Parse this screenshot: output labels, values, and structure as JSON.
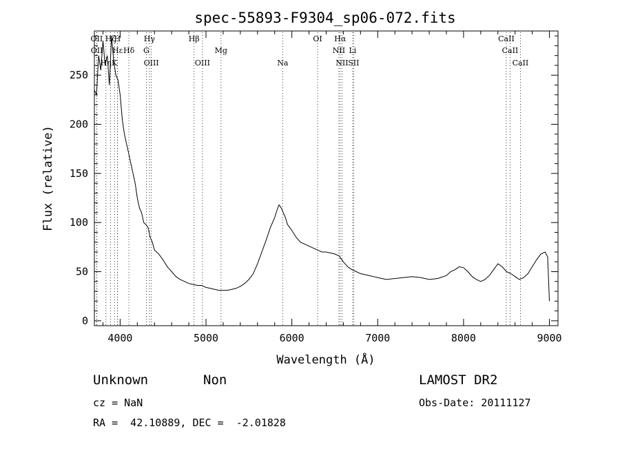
{
  "chart_data": {
    "type": "line",
    "title": "spec-55893-F9304_sp06-072.fits",
    "xlabel": "Wavelength (Å)",
    "ylabel": "Flux (relative)",
    "xlim": [
      3700,
      9100
    ],
    "ylim": [
      -5,
      295
    ],
    "xticks": [
      4000,
      5000,
      6000,
      7000,
      8000,
      9000
    ],
    "yticks": [
      0,
      50,
      100,
      150,
      200,
      250
    ],
    "grid": false,
    "series": [
      {
        "x": [
          3700,
          3725,
          3750,
          3775,
          3800,
          3825,
          3850,
          3875,
          3900,
          3925,
          3950,
          3975,
          4000,
          4025,
          4050,
          4075,
          4100,
          4125,
          4150,
          4175,
          4200,
          4225,
          4250,
          4275,
          4300,
          4325,
          4350,
          4375,
          4400,
          4450,
          4500,
          4550,
          4600,
          4650,
          4700,
          4750,
          4800,
          4850,
          4900,
          4950,
          5000,
          5050,
          5100,
          5150,
          5200,
          5250,
          5300,
          5350,
          5400,
          5450,
          5500,
          5550,
          5600,
          5650,
          5700,
          5750,
          5800,
          5825,
          5850,
          5875,
          5900,
          5925,
          5950,
          6000,
          6050,
          6100,
          6150,
          6200,
          6250,
          6300,
          6350,
          6400,
          6450,
          6500,
          6550,
          6600,
          6650,
          6700,
          6750,
          6800,
          6850,
          6900,
          6950,
          7000,
          7100,
          7200,
          7300,
          7400,
          7500,
          7600,
          7700,
          7800,
          7850,
          7900,
          7950,
          8000,
          8050,
          8100,
          8150,
          8200,
          8250,
          8300,
          8350,
          8400,
          8450,
          8500,
          8550,
          8600,
          8650,
          8700,
          8750,
          8800,
          8850,
          8900,
          8950,
          8980,
          9000
        ],
        "y": [
          235,
          230,
          270,
          255,
          285,
          260,
          270,
          240,
          290,
          265,
          250,
          245,
          230,
          205,
          190,
          180,
          170,
          160,
          150,
          140,
          125,
          115,
          110,
          100,
          98,
          95,
          85,
          80,
          72,
          68,
          62,
          55,
          50,
          45,
          42,
          40,
          38,
          37,
          36,
          36,
          34,
          33,
          32,
          31,
          31,
          31,
          32,
          33,
          35,
          38,
          42,
          48,
          58,
          70,
          82,
          95,
          105,
          112,
          118,
          115,
          110,
          105,
          98,
          92,
          85,
          80,
          78,
          76,
          74,
          72,
          70,
          70,
          69,
          68,
          66,
          60,
          55,
          52,
          50,
          48,
          47,
          46,
          45,
          44,
          42,
          43,
          44,
          45,
          44,
          42,
          43,
          46,
          50,
          52,
          55,
          54,
          50,
          45,
          42,
          40,
          42,
          46,
          52,
          58,
          55,
          50,
          48,
          45,
          42,
          44,
          48,
          55,
          62,
          68,
          70,
          65,
          20
        ]
      }
    ],
    "line_markers": [
      {
        "label": "OII",
        "x": 3727
      },
      {
        "label": "OII",
        "x": 3729
      },
      {
        "label": "Hη",
        "x": 3835
      },
      {
        "label": "Hζ",
        "x": 3889
      },
      {
        "label": "Hε",
        "x": 3970
      },
      {
        "label": "K",
        "x": 3934
      },
      {
        "label": "H",
        "x": 3968
      },
      {
        "label": "Hδ",
        "x": 4102
      },
      {
        "label": "OIII",
        "x": 4363
      },
      {
        "label": "Hγ",
        "x": 4341
      },
      {
        "label": "G",
        "x": 4305
      },
      {
        "label": "OIII",
        "x": 4959
      },
      {
        "label": "Hβ",
        "x": 4861
      },
      {
        "label": "Mg",
        "x": 5175
      },
      {
        "label": "Na",
        "x": 5893
      },
      {
        "label": "OI",
        "x": 6300
      },
      {
        "label": "NII",
        "x": 6548
      },
      {
        "label": "NII",
        "x": 6584
      },
      {
        "label": "Hα",
        "x": 6563
      },
      {
        "label": "Li",
        "x": 6708
      },
      {
        "label": "SII",
        "x": 6720
      },
      {
        "label": "CaII",
        "x": 8498
      },
      {
        "label": "CaII",
        "x": 8542
      },
      {
        "label": "CaII",
        "x": 8662
      }
    ]
  },
  "info": {
    "class_text": "Unknown",
    "subclass_text": "Non",
    "survey": "LAMOST DR2",
    "cz": "cz = NaN",
    "obs_date": "Obs-Date: 20111127",
    "radec": "RA =  42.10889, DEC =  -2.01828"
  }
}
